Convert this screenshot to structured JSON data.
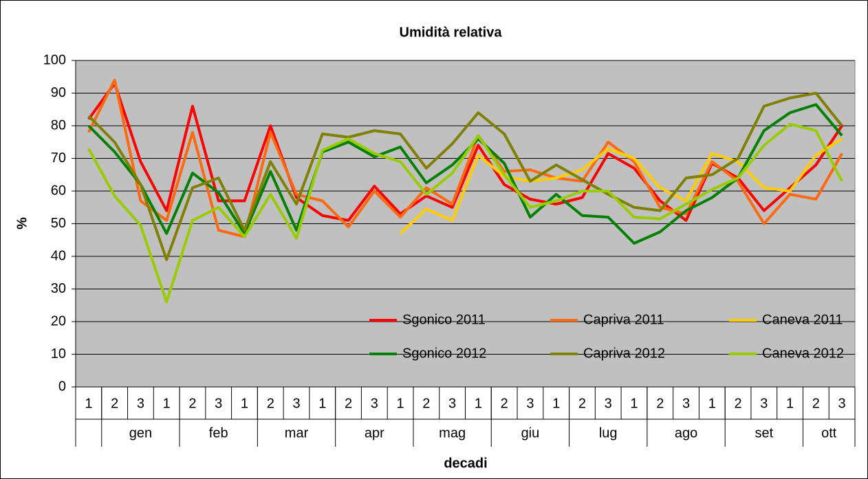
{
  "chart_data": {
    "type": "line",
    "title": "Umidità relativa",
    "y_label": "%",
    "x_label": "decadi",
    "categories": [
      "1",
      "2",
      "3",
      "1",
      "2",
      "3",
      "1",
      "2",
      "3",
      "1",
      "2",
      "3",
      "1",
      "2",
      "3",
      "1",
      "2",
      "3",
      "1",
      "2",
      "3",
      "1",
      "2",
      "3",
      "1",
      "2",
      "3",
      "1",
      "2",
      "3"
    ],
    "category_groups": [
      {
        "label": null,
        "count": 1
      },
      {
        "label": "gen",
        "count": 3
      },
      {
        "label": "feb",
        "count": 3
      },
      {
        "label": "mar",
        "count": 3
      },
      {
        "label": "apr",
        "count": 3
      },
      {
        "label": "mag",
        "count": 3
      },
      {
        "label": "giu",
        "count": 3
      },
      {
        "label": "lug",
        "count": 3
      },
      {
        "label": "ago",
        "count": 3
      },
      {
        "label": "set",
        "count": 3
      },
      {
        "label": "ott",
        "count": 2
      }
    ],
    "ylim": [
      0,
      100
    ],
    "yticks": [
      0,
      10,
      20,
      30,
      40,
      50,
      60,
      70,
      80,
      90,
      100
    ],
    "grid": true,
    "legend": "lower-right",
    "series": [
      {
        "name": "Sgonico 2011",
        "color": "#ff0000",
        "values": [
          82,
          93,
          69,
          54,
          86,
          57,
          57,
          80,
          58,
          52.5,
          51,
          61.5,
          53,
          58.5,
          55,
          74,
          62,
          57.5,
          56,
          58,
          71.5,
          67,
          57,
          51,
          68.5,
          64,
          54,
          61,
          68,
          80
        ]
      },
      {
        "name": "Capriva 2011",
        "color": "#ff6a10",
        "values": [
          78,
          94,
          57,
          51,
          78,
          48,
          46,
          78,
          59,
          57,
          49,
          60,
          52,
          61,
          56,
          77,
          66,
          66.5,
          64,
          63,
          75,
          69,
          55,
          53,
          69,
          63,
          50,
          59,
          57.5,
          71.5
        ]
      },
      {
        "name": "Caneva 2011",
        "color": "#ffcc00",
        "values": [
          null,
          null,
          null,
          null,
          null,
          null,
          null,
          null,
          null,
          null,
          null,
          null,
          47,
          54.5,
          51,
          71,
          64.5,
          63,
          64,
          66.5,
          73,
          70,
          61,
          57,
          71.5,
          69,
          61,
          60,
          71,
          76
        ]
      },
      {
        "name": "Sgonico 2012",
        "color": "#008000",
        "values": [
          80,
          72,
          62,
          47,
          65.5,
          59.5,
          47,
          66,
          48,
          72,
          75,
          70.5,
          73.5,
          62.5,
          68,
          76,
          68.5,
          52,
          59,
          52.5,
          52,
          44,
          47.5,
          54,
          58,
          64,
          78.5,
          84,
          86.5,
          77
        ]
      },
      {
        "name": "Capriva 2012",
        "color": "#808000",
        "values": [
          83,
          75,
          62,
          39,
          61,
          64,
          48,
          69,
          56,
          77.5,
          76.5,
          78.5,
          77.5,
          67,
          74.5,
          84,
          77.5,
          63,
          68,
          63.5,
          59,
          55,
          54,
          64,
          65,
          70,
          86,
          88.5,
          90,
          80
        ]
      },
      {
        "name": "Caneva 2012",
        "color": "#99cc00",
        "values": [
          73,
          58.5,
          49.5,
          26,
          51,
          55,
          46,
          59,
          45.5,
          72.5,
          76,
          71.5,
          69,
          59,
          65.5,
          77,
          65,
          55,
          57,
          60,
          60,
          52,
          51.5,
          56,
          60.5,
          64,
          74,
          80.5,
          78.5,
          63
        ]
      }
    ]
  }
}
